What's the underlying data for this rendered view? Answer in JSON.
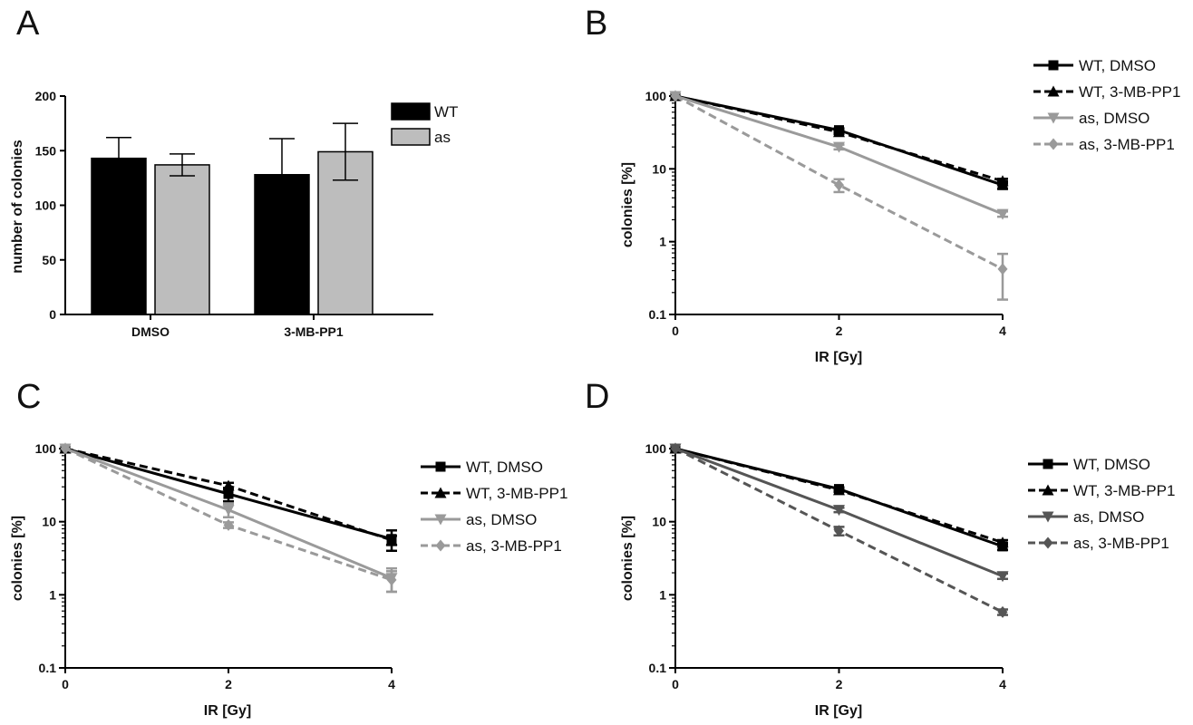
{
  "chart_data": [
    {
      "panel": "A",
      "type": "bar",
      "categories": [
        "DMSO",
        "3-MB-PP1"
      ],
      "series": [
        {
          "name": "WT",
          "values": [
            143,
            128
          ],
          "errors": [
            19,
            33
          ],
          "color": "#000000"
        },
        {
          "name": "as",
          "values": [
            137,
            149
          ],
          "errors": [
            10,
            26
          ],
          "color": "#bdbdbd"
        }
      ],
      "ylabel": "number of colonies",
      "ylim": [
        0,
        200
      ],
      "yticks": [
        0,
        50,
        100,
        150,
        200
      ],
      "legend": "right"
    },
    {
      "panel": "B",
      "type": "line",
      "x": [
        0,
        2,
        4
      ],
      "xticks": [
        0,
        2,
        4
      ],
      "xlabel": "IR [Gy]",
      "ylabel": "colonies [%]",
      "yscale": "log",
      "ylim": [
        0.1,
        100
      ],
      "yticks": [
        "100",
        "10",
        "1",
        "0.1"
      ],
      "legend": "top-right",
      "series": [
        {
          "name": "WT, DMSO",
          "values": [
            100,
            34,
            6
          ],
          "errors": [
            0,
            2,
            0.7
          ],
          "color": "#000000",
          "dash": "solid",
          "marker": "square"
        },
        {
          "name": "WT, 3-MB-PP1",
          "values": [
            100,
            32,
            6.8
          ],
          "errors": [
            0,
            2,
            0.5
          ],
          "color": "#000000",
          "dash": "dashed",
          "marker": "triangle-up"
        },
        {
          "name": "as, DMSO",
          "values": [
            100,
            20,
            2.4
          ],
          "errors": [
            0,
            1.5,
            0.2
          ],
          "color": "#9a9a9a",
          "dash": "solid",
          "marker": "triangle-down"
        },
        {
          "name": "as, 3-MB-PP1",
          "values": [
            100,
            6,
            0.42
          ],
          "errors": [
            0,
            1.2,
            0.26
          ],
          "color": "#9a9a9a",
          "dash": "dashed",
          "marker": "diamond"
        }
      ]
    },
    {
      "panel": "C",
      "type": "line",
      "x": [
        0,
        2,
        4
      ],
      "xticks": [
        0,
        2,
        4
      ],
      "xlabel": "IR [Gy]",
      "ylabel": "colonies [%]",
      "yscale": "log",
      "ylim": [
        0.1,
        100
      ],
      "yticks": [
        "100",
        "10",
        "1",
        "0.1"
      ],
      "legend": "right",
      "series": [
        {
          "name": "WT, DMSO",
          "values": [
            100,
            24,
            5.8
          ],
          "errors": [
            0,
            5,
            1.8
          ],
          "color": "#000000",
          "dash": "solid",
          "marker": "square"
        },
        {
          "name": "WT, 3-MB-PP1",
          "values": [
            100,
            31,
            5.6
          ],
          "errors": [
            0,
            3,
            0.8
          ],
          "color": "#000000",
          "dash": "dashed",
          "marker": "triangle-up"
        },
        {
          "name": "as, DMSO",
          "values": [
            100,
            14.5,
            1.7
          ],
          "errors": [
            0,
            3,
            0.6
          ],
          "color": "#9a9a9a",
          "dash": "solid",
          "marker": "triangle-down"
        },
        {
          "name": "as, 3-MB-PP1",
          "values": [
            100,
            9,
            1.6
          ],
          "errors": [
            0,
            0.8,
            0.5
          ],
          "color": "#9a9a9a",
          "dash": "dashed",
          "marker": "diamond"
        }
      ]
    },
    {
      "panel": "D",
      "type": "line",
      "x": [
        0,
        2,
        4
      ],
      "xticks": [
        0,
        2,
        4
      ],
      "xlabel": "IR [Gy]",
      "ylabel": "colonies [%]",
      "yscale": "log",
      "ylim": [
        0.1,
        100
      ],
      "yticks": [
        "100",
        "10",
        "1",
        "0.1"
      ],
      "legend": "right",
      "series": [
        {
          "name": "WT, DMSO",
          "values": [
            100,
            28,
            4.6
          ],
          "errors": [
            0,
            1.5,
            0.5
          ],
          "color": "#000000",
          "dash": "solid",
          "marker": "square"
        },
        {
          "name": "WT, 3-MB-PP1",
          "values": [
            100,
            27,
            5.2
          ],
          "errors": [
            0,
            1.5,
            0.4
          ],
          "color": "#000000",
          "dash": "dashed",
          "marker": "triangle-up"
        },
        {
          "name": "as, DMSO",
          "values": [
            100,
            14.5,
            1.8
          ],
          "errors": [
            0,
            1,
            0.15
          ],
          "color": "#555555",
          "dash": "solid",
          "marker": "triangle-down"
        },
        {
          "name": "as, 3-MB-PP1",
          "values": [
            100,
            7.5,
            0.58
          ],
          "errors": [
            0,
            1,
            0.05
          ],
          "color": "#555555",
          "dash": "dashed",
          "marker": "diamond"
        }
      ]
    }
  ]
}
